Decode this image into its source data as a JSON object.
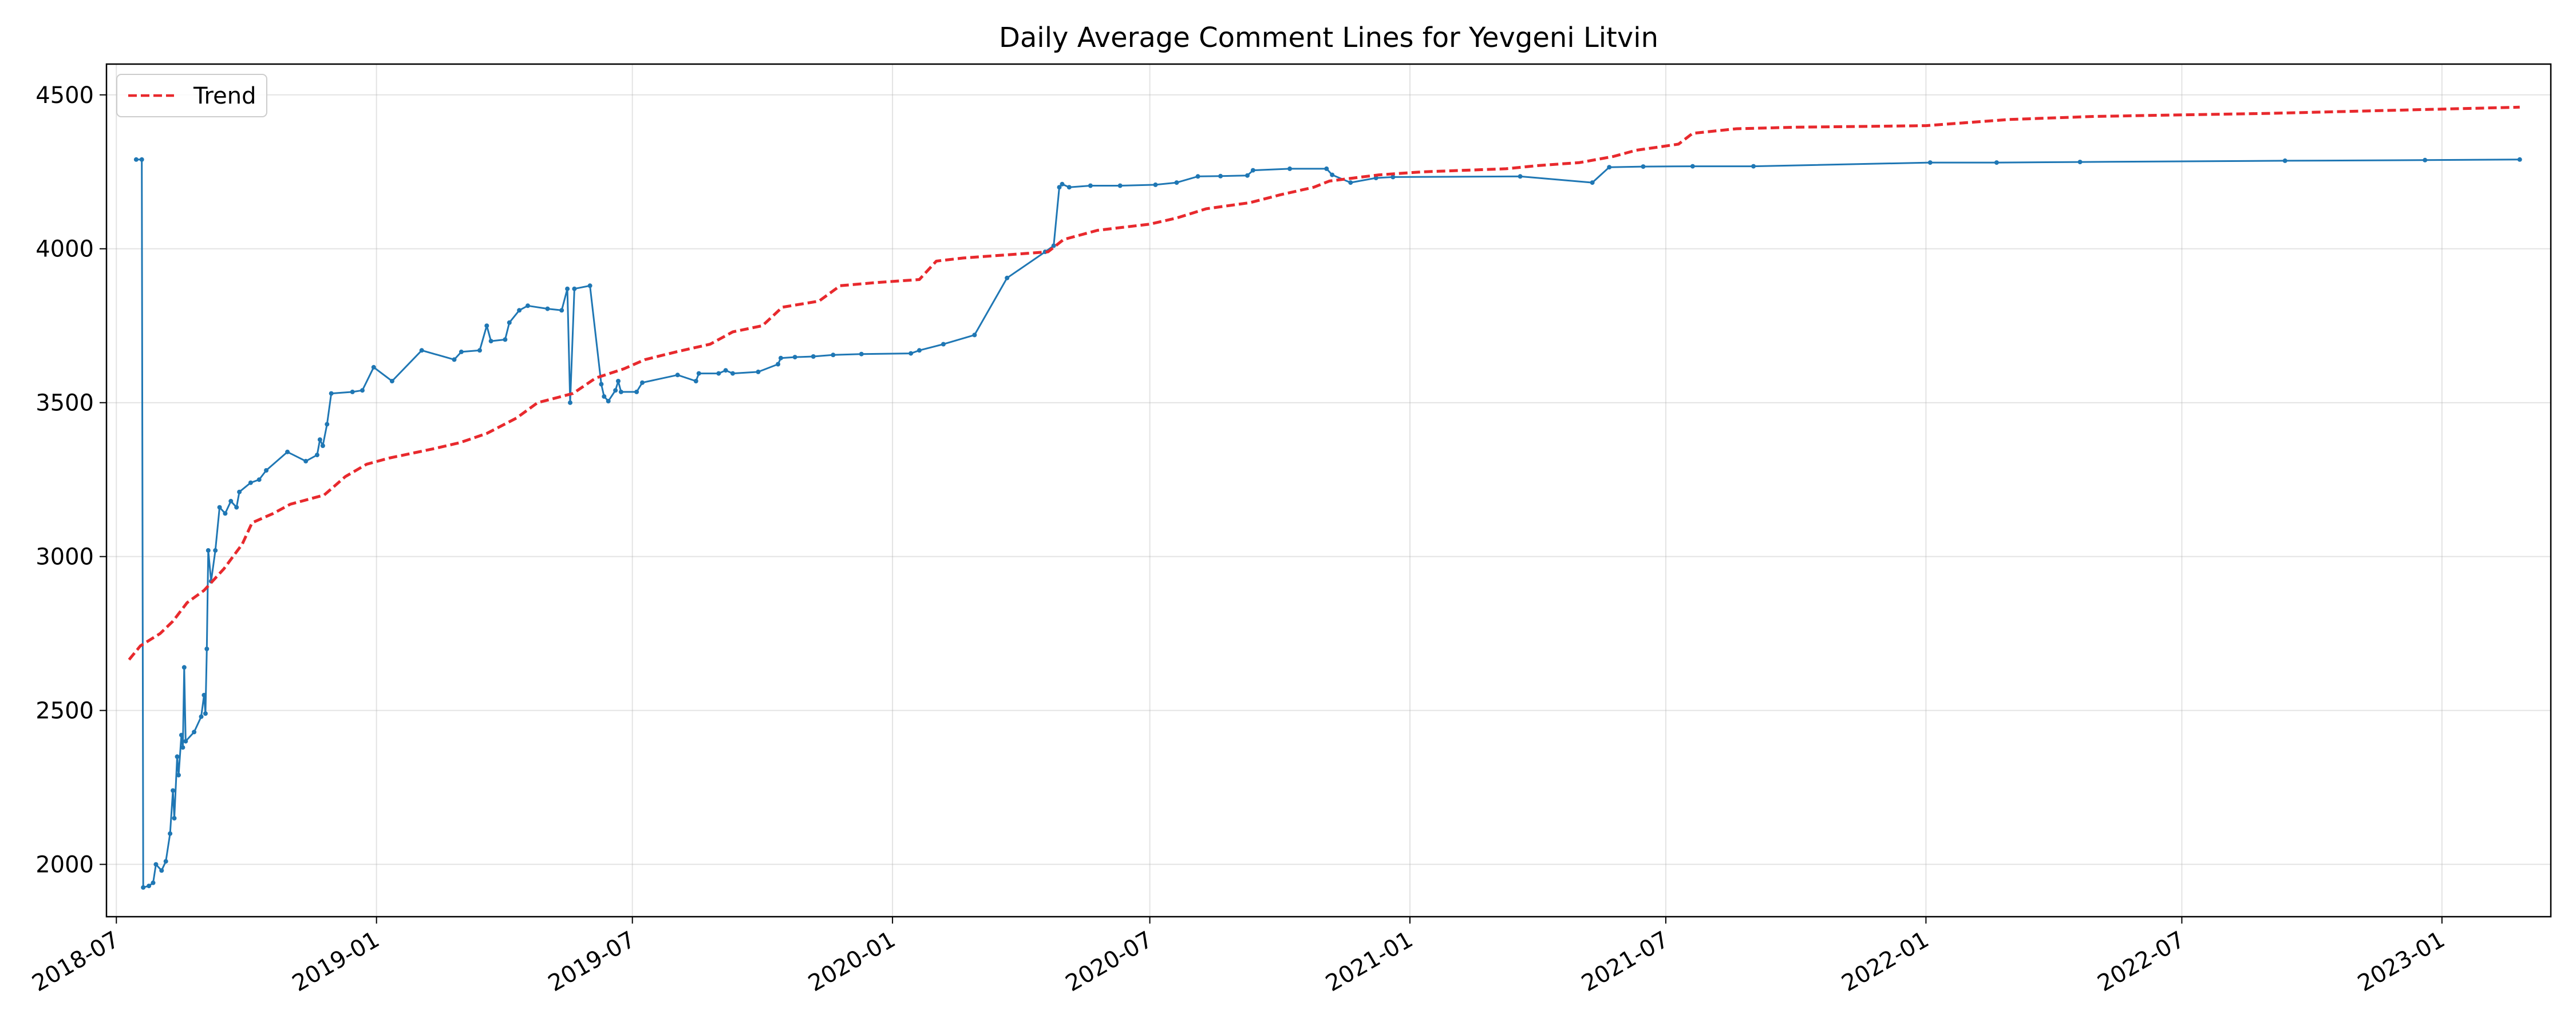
{
  "chart_data": {
    "type": "line",
    "title": "Daily Average Comment Lines for Yevgeni Litvin",
    "xlabel": "",
    "ylabel": "",
    "x_axis": "date",
    "xlim": [
      "2018-06-24",
      "2023-03-19"
    ],
    "ylim": [
      1830,
      4600
    ],
    "grid": true,
    "legend": {
      "position": "top-left",
      "entries": [
        "Trend"
      ]
    },
    "x_ticks": [
      {
        "date": "2018-07-01",
        "label": "2018-07"
      },
      {
        "date": "2019-01-01",
        "label": "2019-01"
      },
      {
        "date": "2019-07-01",
        "label": "2019-07"
      },
      {
        "date": "2020-01-01",
        "label": "2020-01"
      },
      {
        "date": "2020-07-01",
        "label": "2020-07"
      },
      {
        "date": "2021-01-01",
        "label": "2021-01"
      },
      {
        "date": "2021-07-01",
        "label": "2021-07"
      },
      {
        "date": "2022-01-01",
        "label": "2022-01"
      },
      {
        "date": "2022-07-01",
        "label": "2022-07"
      },
      {
        "date": "2023-01-01",
        "label": "2023-01"
      }
    ],
    "y_ticks": [
      2000,
      2500,
      3000,
      3500,
      4000,
      4500
    ],
    "series": [
      {
        "name": "",
        "color": "#1f77b4",
        "style": "solid",
        "markers": true,
        "points": [
          [
            "2018-07-15",
            4290
          ],
          [
            "2018-07-19",
            4290
          ],
          [
            "2018-07-20",
            1925
          ],
          [
            "2018-07-24",
            1930
          ],
          [
            "2018-07-27",
            1940
          ],
          [
            "2018-07-29",
            2000
          ],
          [
            "2018-08-02",
            1980
          ],
          [
            "2018-08-05",
            2010
          ],
          [
            "2018-08-08",
            2100
          ],
          [
            "2018-08-10",
            2240
          ],
          [
            "2018-08-11",
            2150
          ],
          [
            "2018-08-13",
            2350
          ],
          [
            "2018-08-14",
            2290
          ],
          [
            "2018-08-16",
            2420
          ],
          [
            "2018-08-17",
            2380
          ],
          [
            "2018-08-18",
            2640
          ],
          [
            "2018-08-19",
            2400
          ],
          [
            "2018-08-25",
            2430
          ],
          [
            "2018-08-30",
            2480
          ],
          [
            "2018-09-01",
            2550
          ],
          [
            "2018-09-02",
            2490
          ],
          [
            "2018-09-03",
            2700
          ],
          [
            "2018-09-04",
            3020
          ],
          [
            "2018-09-06",
            2920
          ],
          [
            "2018-09-09",
            3020
          ],
          [
            "2018-09-12",
            3160
          ],
          [
            "2018-09-16",
            3140
          ],
          [
            "2018-09-20",
            3180
          ],
          [
            "2018-09-24",
            3160
          ],
          [
            "2018-09-26",
            3210
          ],
          [
            "2018-10-04",
            3240
          ],
          [
            "2018-10-10",
            3250
          ],
          [
            "2018-10-15",
            3280
          ],
          [
            "2018-10-30",
            3340
          ],
          [
            "2018-11-12",
            3310
          ],
          [
            "2018-11-20",
            3330
          ],
          [
            "2018-11-22",
            3380
          ],
          [
            "2018-11-24",
            3360
          ],
          [
            "2018-11-27",
            3430
          ],
          [
            "2018-11-30",
            3530
          ],
          [
            "2018-12-15",
            3535
          ],
          [
            "2018-12-22",
            3540
          ],
          [
            "2018-12-30",
            3615
          ],
          [
            "2019-01-12",
            3570
          ],
          [
            "2019-02-02",
            3670
          ],
          [
            "2019-02-25",
            3640
          ],
          [
            "2019-03-02",
            3665
          ],
          [
            "2019-03-15",
            3670
          ],
          [
            "2019-03-20",
            3750
          ],
          [
            "2019-03-23",
            3700
          ],
          [
            "2019-04-02",
            3705
          ],
          [
            "2019-04-05",
            3760
          ],
          [
            "2019-04-12",
            3800
          ],
          [
            "2019-04-18",
            3815
          ],
          [
            "2019-05-02",
            3805
          ],
          [
            "2019-05-12",
            3800
          ],
          [
            "2019-05-16",
            3870
          ],
          [
            "2019-05-18",
            3500
          ],
          [
            "2019-05-21",
            3870
          ],
          [
            "2019-06-01",
            3880
          ],
          [
            "2019-06-09",
            3560
          ],
          [
            "2019-06-11",
            3520
          ],
          [
            "2019-06-14",
            3505
          ],
          [
            "2019-06-19",
            3540
          ],
          [
            "2019-06-21",
            3570
          ],
          [
            "2019-06-23",
            3535
          ],
          [
            "2019-07-04",
            3535
          ],
          [
            "2019-07-08",
            3565
          ],
          [
            "2019-08-02",
            3590
          ],
          [
            "2019-08-15",
            3570
          ],
          [
            "2019-08-17",
            3595
          ],
          [
            "2019-08-31",
            3595
          ],
          [
            "2019-09-05",
            3605
          ],
          [
            "2019-09-10",
            3595
          ],
          [
            "2019-09-28",
            3600
          ],
          [
            "2019-10-12",
            3625
          ],
          [
            "2019-10-14",
            3645
          ],
          [
            "2019-10-24",
            3648
          ],
          [
            "2019-11-06",
            3650
          ],
          [
            "2019-11-20",
            3655
          ],
          [
            "2019-12-10",
            3658
          ],
          [
            "2020-01-14",
            3660
          ],
          [
            "2020-01-20",
            3670
          ],
          [
            "2020-02-06",
            3690
          ],
          [
            "2020-02-28",
            3720
          ],
          [
            "2020-03-22",
            3905
          ],
          [
            "2020-04-18",
            3990
          ],
          [
            "2020-04-24",
            4010
          ],
          [
            "2020-04-28",
            4200
          ],
          [
            "2020-04-30",
            4210
          ],
          [
            "2020-05-05",
            4200
          ],
          [
            "2020-05-20",
            4205
          ],
          [
            "2020-06-10",
            4205
          ],
          [
            "2020-07-05",
            4208
          ],
          [
            "2020-07-20",
            4215
          ],
          [
            "2020-08-04",
            4235
          ],
          [
            "2020-08-20",
            4236
          ],
          [
            "2020-09-08",
            4238
          ],
          [
            "2020-09-12",
            4255
          ],
          [
            "2020-10-08",
            4260
          ],
          [
            "2020-11-03",
            4260
          ],
          [
            "2020-11-07",
            4240
          ],
          [
            "2020-11-20",
            4215
          ],
          [
            "2020-12-08",
            4230
          ],
          [
            "2020-12-20",
            4233
          ],
          [
            "2021-03-20",
            4235
          ],
          [
            "2021-05-10",
            4215
          ],
          [
            "2021-05-22",
            4265
          ],
          [
            "2021-06-15",
            4267
          ],
          [
            "2021-07-20",
            4268
          ],
          [
            "2021-09-01",
            4268
          ],
          [
            "2022-01-04",
            4280
          ],
          [
            "2022-02-20",
            4280
          ],
          [
            "2022-04-20",
            4282
          ],
          [
            "2022-09-12",
            4286
          ],
          [
            "2022-12-20",
            4288
          ],
          [
            "2023-02-25",
            4290
          ]
        ]
      },
      {
        "name": "Trend",
        "color": "#e8292d",
        "style": "dashed",
        "markers": false,
        "points": [
          [
            "2018-07-10",
            2665
          ],
          [
            "2018-07-18",
            2710
          ],
          [
            "2018-08-01",
            2750
          ],
          [
            "2018-08-10",
            2790
          ],
          [
            "2018-08-20",
            2850
          ],
          [
            "2018-09-01",
            2890
          ],
          [
            "2018-09-15",
            2960
          ],
          [
            "2018-09-28",
            3040
          ],
          [
            "2018-10-05",
            3110
          ],
          [
            "2018-10-20",
            3140
          ],
          [
            "2018-11-01",
            3170
          ],
          [
            "2018-11-25",
            3200
          ],
          [
            "2018-12-10",
            3260
          ],
          [
            "2018-12-25",
            3300
          ],
          [
            "2019-01-10",
            3320
          ],
          [
            "2019-02-10",
            3350
          ],
          [
            "2019-03-01",
            3370
          ],
          [
            "2019-03-20",
            3400
          ],
          [
            "2019-04-10",
            3450
          ],
          [
            "2019-04-25",
            3500
          ],
          [
            "2019-05-20",
            3530
          ],
          [
            "2019-06-05",
            3580
          ],
          [
            "2019-06-25",
            3610
          ],
          [
            "2019-07-10",
            3640
          ],
          [
            "2019-08-01",
            3665
          ],
          [
            "2019-08-25",
            3690
          ],
          [
            "2019-09-10",
            3730
          ],
          [
            "2019-10-01",
            3750
          ],
          [
            "2019-10-15",
            3810
          ],
          [
            "2019-11-10",
            3830
          ],
          [
            "2019-11-25",
            3880
          ],
          [
            "2019-12-20",
            3890
          ],
          [
            "2020-01-20",
            3900
          ],
          [
            "2020-02-01",
            3960
          ],
          [
            "2020-02-20",
            3970
          ],
          [
            "2020-04-20",
            3990
          ],
          [
            "2020-05-01",
            4030
          ],
          [
            "2020-05-25",
            4060
          ],
          [
            "2020-07-01",
            4080
          ],
          [
            "2020-07-20",
            4100
          ],
          [
            "2020-08-10",
            4130
          ],
          [
            "2020-09-10",
            4150
          ],
          [
            "2020-10-01",
            4175
          ],
          [
            "2020-10-25",
            4200
          ],
          [
            "2020-11-05",
            4220
          ],
          [
            "2020-12-10",
            4240
          ],
          [
            "2021-01-10",
            4250
          ],
          [
            "2021-03-10",
            4260
          ],
          [
            "2021-04-01",
            4270
          ],
          [
            "2021-05-01",
            4280
          ],
          [
            "2021-05-25",
            4300
          ],
          [
            "2021-06-10",
            4320
          ],
          [
            "2021-07-10",
            4340
          ],
          [
            "2021-07-20",
            4375
          ],
          [
            "2021-08-20",
            4390
          ],
          [
            "2021-10-01",
            4395
          ],
          [
            "2022-01-01",
            4400
          ],
          [
            "2022-03-01",
            4420
          ],
          [
            "2022-05-01",
            4430
          ],
          [
            "2022-09-01",
            4440
          ],
          [
            "2023-02-25",
            4460
          ]
        ]
      }
    ]
  }
}
